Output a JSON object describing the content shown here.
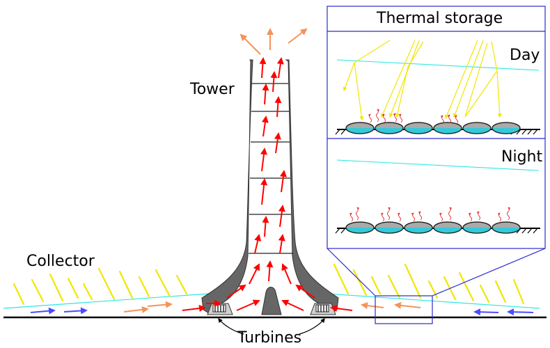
{
  "labels": {
    "tower": "Tower",
    "collector": "Collector",
    "turbines": "Turbines",
    "thermal_storage": "Thermal storage",
    "day": "Day",
    "night": "Night"
  },
  "colors": {
    "hot_air": "#ff0000",
    "warm_air": "#f4935a",
    "cold_air": "#4b4bff",
    "sunlight": "#f2e600",
    "collector_roof": "#2ee6e6",
    "storage_tube": "#35c9d8",
    "structure": "#606060",
    "inset_frame": "#2a2acc",
    "ground": "#000000"
  }
}
